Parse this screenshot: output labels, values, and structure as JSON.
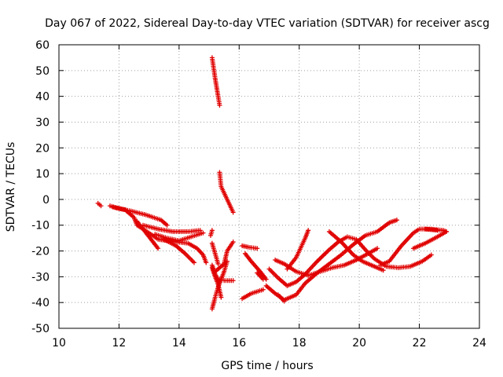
{
  "chart_data": {
    "type": "scatter",
    "title": "Day 067 of 2022, Sidereal Day-to-day VTEC variation (SDTVAR) for receiver ascg",
    "xlabel": "GPS time / hours",
    "ylabel": "SDTVAR / TECUs",
    "xlim": [
      10,
      24
    ],
    "ylim": [
      -50,
      60
    ],
    "xticks": [
      "10",
      "12",
      "14",
      "16",
      "18",
      "20",
      "22",
      "24"
    ],
    "yticks": [
      "-50",
      "-40",
      "-30",
      "-20",
      "-10",
      "0",
      "10",
      "20",
      "30",
      "40",
      "50",
      "60"
    ],
    "grid": true,
    "marker": "+",
    "series_color": "#e00000",
    "segments": [
      {
        "points": [
          [
            11.3,
            -1.5
          ],
          [
            11.4,
            -2.5
          ]
        ]
      },
      {
        "points": [
          [
            11.7,
            -2.5
          ],
          [
            12.0,
            -3.5
          ],
          [
            12.4,
            -4.5
          ],
          [
            12.9,
            -6.0
          ],
          [
            13.4,
            -8.0
          ],
          [
            13.6,
            -10.0
          ]
        ]
      },
      {
        "points": [
          [
            11.8,
            -3.0
          ],
          [
            12.2,
            -4.0
          ],
          [
            12.5,
            -7.0
          ],
          [
            12.6,
            -10.0
          ],
          [
            13.0,
            -13.0
          ],
          [
            13.3,
            -15.5
          ],
          [
            13.9,
            -16.5
          ],
          [
            14.3,
            -17.0
          ],
          [
            14.6,
            -19.0
          ],
          [
            14.8,
            -21.5
          ],
          [
            14.9,
            -24.5
          ]
        ]
      },
      {
        "points": [
          [
            12.6,
            -8.5
          ],
          [
            12.9,
            -13.0
          ],
          [
            13.1,
            -16.0
          ],
          [
            13.3,
            -19.0
          ]
        ]
      },
      {
        "points": [
          [
            12.8,
            -10.0
          ],
          [
            13.3,
            -11.5
          ],
          [
            13.8,
            -12.5
          ],
          [
            14.3,
            -12.5
          ],
          [
            14.7,
            -12.0
          ]
        ]
      },
      {
        "points": [
          [
            13.2,
            -13.5
          ],
          [
            13.6,
            -15.0
          ],
          [
            14.0,
            -16.0
          ],
          [
            14.4,
            -14.5
          ],
          [
            14.8,
            -13.0
          ]
        ]
      },
      {
        "points": [
          [
            13.5,
            -15.5
          ],
          [
            13.9,
            -18.0
          ],
          [
            14.2,
            -21.0
          ],
          [
            14.5,
            -24.5
          ]
        ]
      },
      {
        "points": [
          [
            15.1,
            -42.5
          ],
          [
            15.2,
            -38.0
          ],
          [
            15.3,
            -34.0
          ],
          [
            15.5,
            -28.0
          ],
          [
            15.6,
            -24.0
          ]
        ]
      },
      {
        "points": [
          [
            15.1,
            -17.0
          ],
          [
            15.2,
            -21.0
          ],
          [
            15.3,
            -25.0
          ]
        ]
      },
      {
        "points": [
          [
            15.1,
            -25.5
          ],
          [
            15.2,
            -29.0
          ],
          [
            15.35,
            -32.0
          ]
        ]
      },
      {
        "points": [
          [
            15.1,
            -26.5
          ],
          [
            15.2,
            -30.0
          ],
          [
            15.3,
            -33.0
          ],
          [
            15.4,
            -38.0
          ]
        ]
      },
      {
        "points": [
          [
            15.5,
            -31.5
          ],
          [
            15.8,
            -31.5
          ]
        ]
      },
      {
        "points": [
          [
            15.2,
            -28.0
          ],
          [
            15.5,
            -25.0
          ],
          [
            15.6,
            -20.0
          ],
          [
            15.8,
            -16.5
          ]
        ]
      },
      {
        "points": [
          [
            15.05,
            -14.0
          ],
          [
            15.1,
            -12.0
          ]
        ]
      },
      {
        "points": [
          [
            15.1,
            55.0
          ],
          [
            15.2,
            47.0
          ],
          [
            15.3,
            40.0
          ],
          [
            15.35,
            36.5
          ]
        ]
      },
      {
        "points": [
          [
            15.35,
            10.5
          ],
          [
            15.4,
            5.0
          ],
          [
            15.6,
            0.0
          ],
          [
            15.8,
            -5.0
          ]
        ]
      },
      {
        "points": [
          [
            16.1,
            -18.0
          ],
          [
            16.3,
            -18.5
          ],
          [
            16.6,
            -19.0
          ]
        ]
      },
      {
        "points": [
          [
            16.2,
            -21.0
          ],
          [
            16.4,
            -24.0
          ],
          [
            16.7,
            -28.0
          ],
          [
            16.9,
            -31.0
          ]
        ]
      },
      {
        "points": [
          [
            16.1,
            -38.5
          ],
          [
            16.4,
            -36.5
          ],
          [
            16.8,
            -35.0
          ]
        ]
      },
      {
        "points": [
          [
            16.6,
            -28.5
          ],
          [
            16.8,
            -31.0
          ]
        ]
      },
      {
        "points": [
          [
            17.0,
            -27.0
          ],
          [
            17.3,
            -30.5
          ],
          [
            17.6,
            -33.5
          ],
          [
            17.9,
            -32.0
          ],
          [
            18.2,
            -29.0
          ],
          [
            18.6,
            -24.0
          ],
          [
            19.0,
            -19.5
          ],
          [
            19.3,
            -16.5
          ],
          [
            19.6,
            -14.5
          ],
          [
            19.9,
            -15.5
          ],
          [
            20.2,
            -19.5
          ],
          [
            20.5,
            -23.0
          ],
          [
            20.9,
            -26.0
          ],
          [
            21.3,
            -26.5
          ],
          [
            21.7,
            -26.0
          ],
          [
            22.1,
            -24.0
          ],
          [
            22.4,
            -21.5
          ]
        ]
      },
      {
        "points": [
          [
            16.9,
            -33.5
          ],
          [
            17.2,
            -36.5
          ],
          [
            17.5,
            -39.0
          ],
          [
            17.9,
            -37.0
          ],
          [
            18.2,
            -32.5
          ],
          [
            18.6,
            -28.5
          ],
          [
            19.0,
            -25.0
          ],
          [
            19.4,
            -21.5
          ],
          [
            19.8,
            -17.5
          ],
          [
            20.2,
            -14.0
          ],
          [
            20.6,
            -12.5
          ],
          [
            21.0,
            -9.0
          ],
          [
            21.25,
            -8.0
          ]
        ]
      },
      {
        "points": [
          [
            17.3,
            -37.0
          ],
          [
            17.5,
            -39.5
          ]
        ]
      },
      {
        "points": [
          [
            17.6,
            -27.0
          ],
          [
            17.9,
            -22.5
          ],
          [
            18.2,
            -15.0
          ],
          [
            18.3,
            -12.0
          ]
        ]
      },
      {
        "points": [
          [
            17.2,
            -23.5
          ],
          [
            17.5,
            -25.0
          ],
          [
            17.9,
            -28.0
          ],
          [
            18.3,
            -29.5
          ],
          [
            18.7,
            -28.0
          ],
          [
            19.1,
            -26.5
          ],
          [
            19.5,
            -25.5
          ],
          [
            19.9,
            -23.5
          ],
          [
            20.3,
            -21.0
          ],
          [
            20.6,
            -19.0
          ]
        ]
      },
      {
        "points": [
          [
            19.0,
            -12.5
          ],
          [
            19.4,
            -16.5
          ],
          [
            19.8,
            -21.5
          ],
          [
            20.1,
            -24.0
          ],
          [
            20.5,
            -26.0
          ],
          [
            20.8,
            -27.5
          ]
        ]
      },
      {
        "points": [
          [
            20.7,
            -25.5
          ],
          [
            21.0,
            -24.0
          ],
          [
            21.4,
            -18.0
          ],
          [
            21.8,
            -13.0
          ],
          [
            22.0,
            -11.5
          ],
          [
            22.4,
            -11.5
          ],
          [
            22.8,
            -12.0
          ],
          [
            22.9,
            -12.5
          ]
        ]
      },
      {
        "points": [
          [
            21.8,
            -19.0
          ],
          [
            22.2,
            -17.0
          ],
          [
            22.6,
            -14.5
          ],
          [
            22.9,
            -12.5
          ]
        ]
      },
      {
        "points": [
          [
            22.2,
            -11.5
          ],
          [
            22.6,
            -12.0
          ]
        ]
      }
    ]
  }
}
